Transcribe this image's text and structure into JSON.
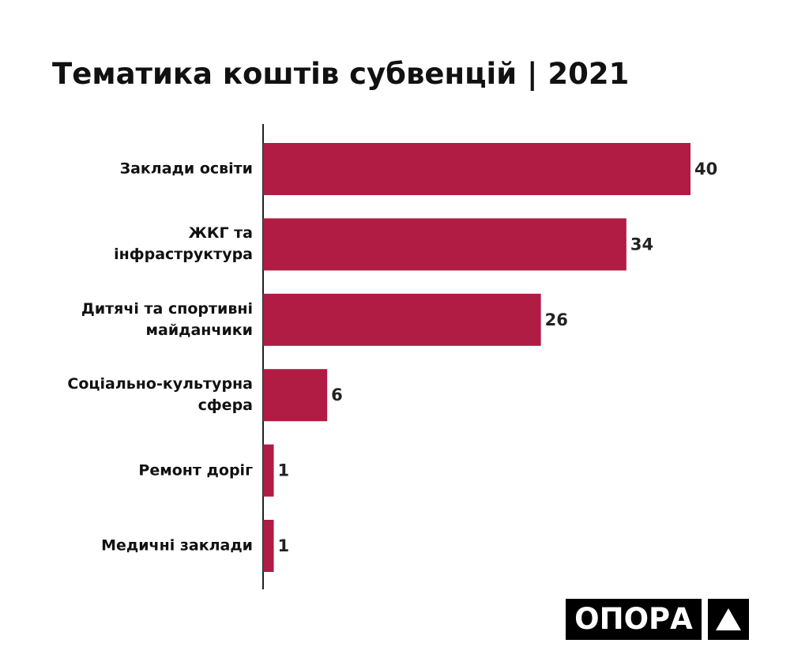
{
  "chart_data": {
    "type": "hbar",
    "title": "Тематика коштів субвенцій | 2021",
    "categories": [
      "Заклади освіти",
      "ЖКГ та інфраструктура",
      "Дитячі та спортивні майданчики",
      "Соціально-культурна сфера",
      "Ремонт доріг",
      "Медичні заклади"
    ],
    "values": [
      40,
      34,
      26,
      6,
      1,
      1
    ],
    "color": "#b01c44",
    "xlim": [
      0,
      40
    ]
  },
  "logo": "ОПОРА"
}
